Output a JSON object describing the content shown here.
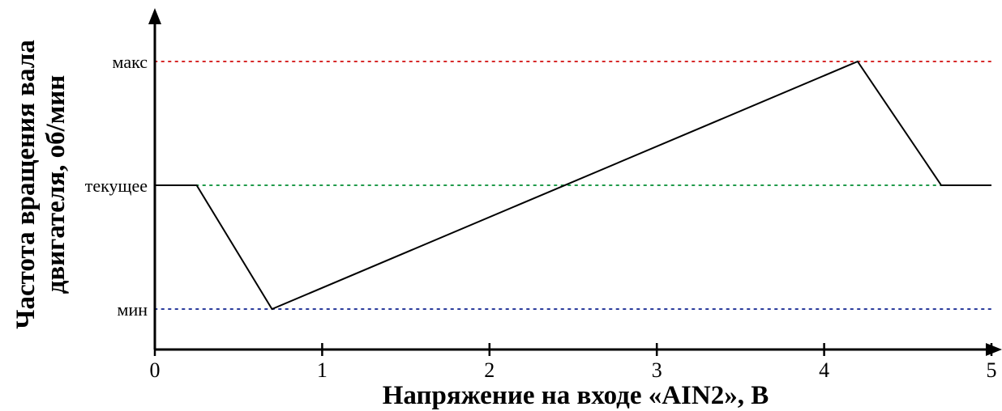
{
  "chart_data": {
    "type": "line",
    "title": "",
    "xlabel": "Напряжение на входе «AIN2», В",
    "ylabel_lines": [
      "Частота вращения вала",
      "двигателя, об/мин"
    ],
    "x_ticks": [
      0,
      1,
      2,
      3,
      4,
      5
    ],
    "xlim": [
      0,
      5
    ],
    "y_levels": [
      {
        "key": "max",
        "label": "макс",
        "color": "#d62828"
      },
      {
        "key": "current",
        "label": "текущее",
        "color": "#1f9a4a"
      },
      {
        "key": "min",
        "label": "мин",
        "color": "#2a3b9c"
      }
    ],
    "series": [
      {
        "x": [
          0,
          0.25,
          0.7,
          4.2,
          4.7,
          5
        ],
        "y": [
          "current",
          "current",
          "min",
          "max",
          "current",
          "current"
        ]
      }
    ],
    "grid": false
  }
}
